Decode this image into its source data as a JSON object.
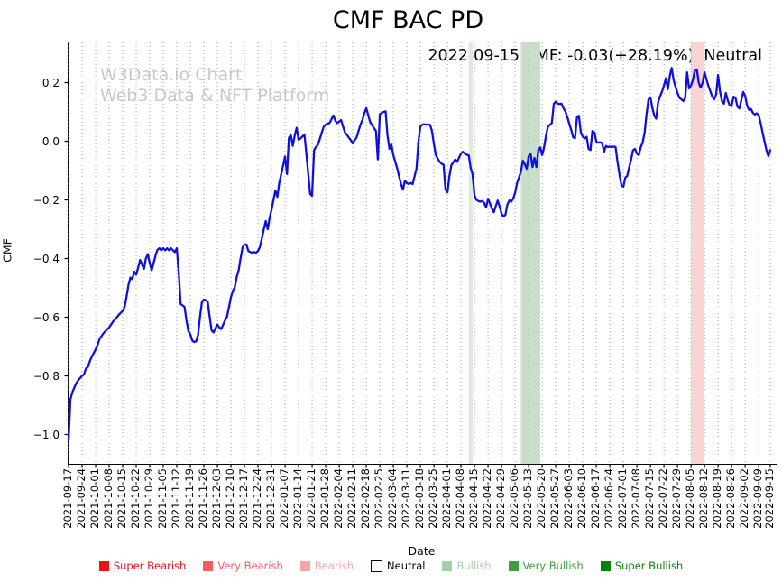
{
  "title": "CMF BAC PD",
  "annotation": {
    "main": "2022-09-15 CMF: -0.03(+28.19%)",
    "status": "Neutral"
  },
  "watermark": {
    "line1": "W3Data.io Chart",
    "line2": "Web3 Data & NFT Platform"
  },
  "legend": [
    {
      "label": "Super Bearish",
      "color": "#ee1111",
      "text_color": "#ee1111",
      "outlined": false
    },
    {
      "label": "Very Bearish",
      "color": "#f15e5e",
      "text_color": "#f15e5e",
      "outlined": false
    },
    {
      "label": "Bearish",
      "color": "#f4a7a7",
      "text_color": "#f4a7a7",
      "outlined": false
    },
    {
      "label": "Neutral",
      "color": "#ffffff",
      "text_color": "#000000",
      "outlined": true
    },
    {
      "label": "Bullish",
      "color": "#a3d0a3",
      "text_color": "#a3d0a3",
      "outlined": false
    },
    {
      "label": "Very Bullish",
      "color": "#3c9e3c",
      "text_color": "#3c9e3c",
      "outlined": false
    },
    {
      "label": "Super Bullish",
      "color": "#078207",
      "text_color": "#078207",
      "outlined": false
    }
  ],
  "chart_data": {
    "type": "line",
    "title": "CMF BAC PD",
    "xlabel": "Date",
    "ylabel": "CMF",
    "series_name": "CMF",
    "line_color": "#1010dd",
    "grid": "vertical-dotted",
    "grid_color": "#9a9a9a",
    "x_start_date": "2021-09-17",
    "x_end_date": "2022-09-15",
    "x_unit_of_points": "days since 2021-09-17",
    "ylim": [
      -1.1,
      0.337
    ],
    "y_ticks": {
      "values": [
        0.2,
        0.0,
        -0.2,
        -0.4,
        -0.6,
        -0.8,
        -1.0
      ],
      "labels": [
        "0.2",
        "0.0",
        "−0.2",
        "−0.4",
        "−0.6",
        "−0.8",
        "−1.0"
      ]
    },
    "x_ticks": [
      "2021-09-17",
      "2021-09-24",
      "2021-10-01",
      "2021-10-08",
      "2021-10-15",
      "2021-10-22",
      "2021-10-29",
      "2021-11-05",
      "2021-11-12",
      "2021-11-19",
      "2021-11-26",
      "2021-12-03",
      "2021-12-10",
      "2021-12-17",
      "2021-12-24",
      "2021-12-31",
      "2022-01-07",
      "2022-01-14",
      "2022-01-21",
      "2022-01-28",
      "2022-02-04",
      "2022-02-11",
      "2022-02-18",
      "2022-02-25",
      "2022-03-04",
      "2022-03-11",
      "2022-03-18",
      "2022-03-25",
      "2022-04-01",
      "2022-04-08",
      "2022-04-15",
      "2022-04-22",
      "2022-04-29",
      "2022-05-06",
      "2022-05-13",
      "2022-05-20",
      "2022-05-27",
      "2022-06-03",
      "2022-06-10",
      "2022-06-17",
      "2022-06-24",
      "2022-07-01",
      "2022-07-08",
      "2022-07-15",
      "2022-07-22",
      "2022-07-29",
      "2022-08-05",
      "2022-08-12",
      "2022-08-19",
      "2022-08-26",
      "2022-09-02",
      "2022-09-09",
      "2022-09-15"
    ],
    "bands": [
      {
        "start_date": "2022-04-12",
        "end_date": "2022-04-14",
        "color": "#dcecdc",
        "meaning": "bullish-light"
      },
      {
        "start_date": "2022-05-09",
        "end_date": "2022-05-19",
        "color": "#c7dfc8",
        "meaning": "bullish"
      },
      {
        "start_date": "2022-08-05",
        "end_date": "2022-08-12",
        "color": "#f9d4d4",
        "meaning": "bearish"
      }
    ],
    "points": [
      [
        0,
        -1.02
      ],
      [
        1,
        -0.88
      ],
      [
        2,
        -0.855
      ],
      [
        3,
        -0.84
      ],
      [
        4,
        -0.825
      ],
      [
        5,
        -0.815
      ],
      [
        7,
        -0.8
      ],
      [
        8,
        -0.795
      ],
      [
        9,
        -0.775
      ],
      [
        10,
        -0.77
      ],
      [
        11,
        -0.75
      ],
      [
        12,
        -0.735
      ],
      [
        14,
        -0.71
      ],
      [
        15,
        -0.695
      ],
      [
        16,
        -0.675
      ],
      [
        18,
        -0.655
      ],
      [
        19,
        -0.648
      ],
      [
        21,
        -0.635
      ],
      [
        23,
        -0.615
      ],
      [
        25,
        -0.6
      ],
      [
        26,
        -0.592
      ],
      [
        28,
        -0.578
      ],
      [
        29,
        -0.565
      ],
      [
        30,
        -0.53
      ],
      [
        31,
        -0.49
      ],
      [
        32,
        -0.465
      ],
      [
        33,
        -0.47
      ],
      [
        34,
        -0.445
      ],
      [
        35,
        -0.455
      ],
      [
        36,
        -0.43
      ],
      [
        37,
        -0.405
      ],
      [
        38,
        -0.42
      ],
      [
        39,
        -0.435
      ],
      [
        40,
        -0.4
      ],
      [
        41,
        -0.385
      ],
      [
        42,
        -0.415
      ],
      [
        43,
        -0.44
      ],
      [
        44,
        -0.415
      ],
      [
        45,
        -0.39
      ],
      [
        46,
        -0.37
      ],
      [
        47,
        -0.365
      ],
      [
        48,
        -0.372
      ],
      [
        49,
        -0.365
      ],
      [
        50,
        -0.372
      ],
      [
        51,
        -0.365
      ],
      [
        52,
        -0.372
      ],
      [
        53,
        -0.365
      ],
      [
        54,
        -0.372
      ],
      [
        55,
        -0.378
      ],
      [
        56,
        -0.365
      ],
      [
        57,
        -0.45
      ],
      [
        58,
        -0.555
      ],
      [
        59,
        -0.56
      ],
      [
        60,
        -0.565
      ],
      [
        61,
        -0.61
      ],
      [
        62,
        -0.648
      ],
      [
        63,
        -0.658
      ],
      [
        64,
        -0.68
      ],
      [
        65,
        -0.685
      ],
      [
        66,
        -0.682
      ],
      [
        67,
        -0.66
      ],
      [
        68,
        -0.6
      ],
      [
        69,
        -0.548
      ],
      [
        70,
        -0.54
      ],
      [
        71,
        -0.542
      ],
      [
        72,
        -0.548
      ],
      [
        73,
        -0.6
      ],
      [
        74,
        -0.645
      ],
      [
        75,
        -0.652
      ],
      [
        76,
        -0.638
      ],
      [
        77,
        -0.625
      ],
      [
        78,
        -0.635
      ],
      [
        79,
        -0.64
      ],
      [
        80,
        -0.625
      ],
      [
        81,
        -0.61
      ],
      [
        82,
        -0.598
      ],
      [
        83,
        -0.565
      ],
      [
        84,
        -0.532
      ],
      [
        85,
        -0.51
      ],
      [
        86,
        -0.498
      ],
      [
        87,
        -0.462
      ],
      [
        88,
        -0.44
      ],
      [
        89,
        -0.4
      ],
      [
        90,
        -0.362
      ],
      [
        91,
        -0.352
      ],
      [
        92,
        -0.352
      ],
      [
        93,
        -0.374
      ],
      [
        94,
        -0.378
      ],
      [
        95,
        -0.38
      ],
      [
        96,
        -0.378
      ],
      [
        97,
        -0.38
      ],
      [
        98,
        -0.374
      ],
      [
        99,
        -0.36
      ],
      [
        100,
        -0.332
      ],
      [
        101,
        -0.3
      ],
      [
        102,
        -0.272
      ],
      [
        103,
        -0.3
      ],
      [
        104,
        -0.262
      ],
      [
        105,
        -0.235
      ],
      [
        106,
        -0.2
      ],
      [
        107,
        -0.168
      ],
      [
        108,
        -0.19
      ],
      [
        109,
        -0.142
      ],
      [
        110,
        -0.112
      ],
      [
        111,
        -0.082
      ],
      [
        112,
        -0.052
      ],
      [
        113,
        -0.112
      ],
      [
        114,
        0.012
      ],
      [
        115,
        0.02
      ],
      [
        116,
        -0.016
      ],
      [
        117,
        0.02
      ],
      [
        118,
        0.046
      ],
      [
        119,
        0.005
      ],
      [
        120,
        0.01
      ],
      [
        121,
        0.016
      ],
      [
        122,
        0.023
      ],
      [
        123,
        -0.04
      ],
      [
        124,
        -0.112
      ],
      [
        125,
        -0.18
      ],
      [
        126,
        -0.186
      ],
      [
        127,
        -0.03
      ],
      [
        128,
        -0.02
      ],
      [
        129,
        -0.012
      ],
      [
        130,
        0.008
      ],
      [
        131,
        0.03
      ],
      [
        132,
        0.05
      ],
      [
        133,
        0.057
      ],
      [
        134,
        0.06
      ],
      [
        135,
        0.062
      ],
      [
        136,
        0.075
      ],
      [
        137,
        0.088
      ],
      [
        138,
        0.07
      ],
      [
        139,
        0.062
      ],
      [
        140,
        0.067
      ],
      [
        141,
        0.072
      ],
      [
        142,
        0.05
      ],
      [
        143,
        0.03
      ],
      [
        144,
        0.022
      ],
      [
        145,
        0.012
      ],
      [
        146,
        0.004
      ],
      [
        147,
        -0.008
      ],
      [
        148,
        0.004
      ],
      [
        149,
        0.012
      ],
      [
        150,
        0.035
      ],
      [
        151,
        0.056
      ],
      [
        152,
        0.072
      ],
      [
        153,
        0.095
      ],
      [
        154,
        0.113
      ],
      [
        155,
        0.09
      ],
      [
        156,
        0.066
      ],
      [
        157,
        0.055
      ],
      [
        158,
        0.045
      ],
      [
        159,
        0.035
      ],
      [
        160,
        -0.062
      ],
      [
        161,
        0.092
      ],
      [
        162,
        0.097
      ],
      [
        163,
        0.1
      ],
      [
        164,
        0.102
      ],
      [
        165,
        0.02
      ],
      [
        166,
        -0.026
      ],
      [
        167,
        -0.011
      ],
      [
        168,
        -0.047
      ],
      [
        169,
        -0.07
      ],
      [
        170,
        -0.093
      ],
      [
        171,
        -0.12
      ],
      [
        172,
        -0.146
      ],
      [
        173,
        -0.165
      ],
      [
        174,
        -0.134
      ],
      [
        175,
        -0.143
      ],
      [
        176,
        -0.146
      ],
      [
        177,
        -0.142
      ],
      [
        178,
        -0.146
      ],
      [
        179,
        -0.12
      ],
      [
        180,
        -0.093
      ],
      [
        181,
        0
      ],
      [
        182,
        0.05
      ],
      [
        183,
        0.057
      ],
      [
        184,
        0.058
      ],
      [
        185,
        0.056
      ],
      [
        186,
        0.058
      ],
      [
        187,
        0.056
      ],
      [
        188,
        0.035
      ],
      [
        189,
        -0.01
      ],
      [
        190,
        -0.047
      ],
      [
        191,
        -0.06
      ],
      [
        192,
        -0.07
      ],
      [
        193,
        -0.077
      ],
      [
        194,
        -0.08
      ],
      [
        195,
        -0.165
      ],
      [
        196,
        -0.174
      ],
      [
        197,
        -0.12
      ],
      [
        198,
        -0.082
      ],
      [
        199,
        -0.072
      ],
      [
        200,
        -0.062
      ],
      [
        201,
        -0.07
      ],
      [
        202,
        -0.056
      ],
      [
        203,
        -0.042
      ],
      [
        204,
        -0.036
      ],
      [
        205,
        -0.042
      ],
      [
        206,
        -0.046
      ],
      [
        207,
        -0.048
      ],
      [
        208,
        -0.09
      ],
      [
        209,
        -0.112
      ],
      [
        210,
        -0.185
      ],
      [
        211,
        -0.2
      ],
      [
        212,
        -0.204
      ],
      [
        213,
        -0.206
      ],
      [
        214,
        -0.204
      ],
      [
        215,
        -0.21
      ],
      [
        216,
        -0.226
      ],
      [
        217,
        -0.196
      ],
      [
        218,
        -0.212
      ],
      [
        219,
        -0.23
      ],
      [
        220,
        -0.242
      ],
      [
        221,
        -0.221
      ],
      [
        222,
        -0.202
      ],
      [
        223,
        -0.222
      ],
      [
        224,
        -0.247
      ],
      [
        225,
        -0.257
      ],
      [
        226,
        -0.25
      ],
      [
        227,
        -0.216
      ],
      [
        228,
        -0.202
      ],
      [
        229,
        -0.206
      ],
      [
        230,
        -0.196
      ],
      [
        231,
        -0.176
      ],
      [
        232,
        -0.144
      ],
      [
        233,
        -0.124
      ],
      [
        234,
        -0.104
      ],
      [
        235,
        -0.066
      ],
      [
        236,
        -0.078
      ],
      [
        237,
        -0.094
      ],
      [
        238,
        -0.052
      ],
      [
        239,
        -0.042
      ],
      [
        240,
        -0.088
      ],
      [
        241,
        -0.057
      ],
      [
        242,
        -0.088
      ],
      [
        243,
        -0.032
      ],
      [
        244,
        -0.021
      ],
      [
        245,
        -0.047
      ],
      [
        246,
        -0.021
      ],
      [
        247,
        0.02
      ],
      [
        248,
        0.05
      ],
      [
        249,
        0.056
      ],
      [
        250,
        0.062
      ],
      [
        251,
        0.128
      ],
      [
        252,
        0.135
      ],
      [
        253,
        0.128
      ],
      [
        254,
        0.127
      ],
      [
        255,
        0.128
      ],
      [
        256,
        0.113
      ],
      [
        257,
        0.102
      ],
      [
        258,
        0.082
      ],
      [
        259,
        0.06
      ],
      [
        260,
        0.04
      ],
      [
        261,
        0.014
      ],
      [
        262,
        0.01
      ],
      [
        263,
        0.082
      ],
      [
        264,
        0.087
      ],
      [
        265,
        0.03
      ],
      [
        266,
        0.015
      ],
      [
        267,
        0.01
      ],
      [
        268,
        0.015
      ],
      [
        269,
        -0.026
      ],
      [
        270,
        -0.03
      ],
      [
        271,
        0.035
      ],
      [
        272,
        0.03
      ],
      [
        273,
        -0.001
      ],
      [
        274,
        -0.005
      ],
      [
        275,
        -0.004
      ],
      [
        276,
        -0.006
      ],
      [
        277,
        -0.036
      ],
      [
        278,
        -0.016
      ],
      [
        279,
        -0.02
      ],
      [
        280,
        -0.018
      ],
      [
        281,
        -0.02
      ],
      [
        282,
        -0.018
      ],
      [
        283,
        -0.02
      ],
      [
        284,
        -0.072
      ],
      [
        285,
        -0.113
      ],
      [
        286,
        -0.15
      ],
      [
        287,
        -0.155
      ],
      [
        288,
        -0.124
      ],
      [
        289,
        -0.118
      ],
      [
        290,
        -0.09
      ],
      [
        291,
        -0.062
      ],
      [
        292,
        -0.031
      ],
      [
        293,
        -0.026
      ],
      [
        294,
        -0.042
      ],
      [
        295,
        -0.047
      ],
      [
        296,
        -0.02
      ],
      [
        297,
        -0.005
      ],
      [
        298,
        0.03
      ],
      [
        299,
        0.092
      ],
      [
        300,
        0.143
      ],
      [
        301,
        0.15
      ],
      [
        302,
        0.113
      ],
      [
        303,
        0.087
      ],
      [
        304,
        0.077
      ],
      [
        305,
        0.134
      ],
      [
        306,
        0.153
      ],
      [
        307,
        0.17
      ],
      [
        308,
        0.19
      ],
      [
        309,
        0.215
      ],
      [
        310,
        0.177
      ],
      [
        311,
        0.223
      ],
      [
        312,
        0.25
      ],
      [
        313,
        0.21
      ],
      [
        314,
        0.185
      ],
      [
        315,
        0.165
      ],
      [
        316,
        0.148
      ],
      [
        317,
        0.143
      ],
      [
        318,
        0.137
      ],
      [
        319,
        0.148
      ],
      [
        320,
        0.235
      ],
      [
        321,
        0.18
      ],
      [
        322,
        0.19
      ],
      [
        323,
        0.21
      ],
      [
        324,
        0.242
      ],
      [
        325,
        0.245
      ],
      [
        326,
        0.199
      ],
      [
        327,
        0.183
      ],
      [
        328,
        0.2
      ],
      [
        329,
        0.235
      ],
      [
        330,
        0.21
      ],
      [
        331,
        0.189
      ],
      [
        332,
        0.17
      ],
      [
        333,
        0.152
      ],
      [
        334,
        0.143
      ],
      [
        335,
        0.16
      ],
      [
        336,
        0.226
      ],
      [
        337,
        0.17
      ],
      [
        338,
        0.137
      ],
      [
        339,
        0.128
      ],
      [
        340,
        0.165
      ],
      [
        341,
        0.14
      ],
      [
        342,
        0.122
      ],
      [
        343,
        0.12
      ],
      [
        344,
        0.152
      ],
      [
        345,
        0.148
      ],
      [
        346,
        0.118
      ],
      [
        347,
        0.112
      ],
      [
        348,
        0.14
      ],
      [
        349,
        0.168
      ],
      [
        350,
        0.155
      ],
      [
        351,
        0.122
      ],
      [
        352,
        0.107
      ],
      [
        353,
        0.11
      ],
      [
        354,
        0.097
      ],
      [
        355,
        0.091
      ],
      [
        356,
        0.095
      ],
      [
        357,
        0.09
      ],
      [
        358,
        0.062
      ],
      [
        359,
        0.03
      ],
      [
        360,
        -0.001
      ],
      [
        361,
        -0.03
      ],
      [
        362,
        -0.051
      ],
      [
        363,
        -0.03
      ]
    ]
  }
}
